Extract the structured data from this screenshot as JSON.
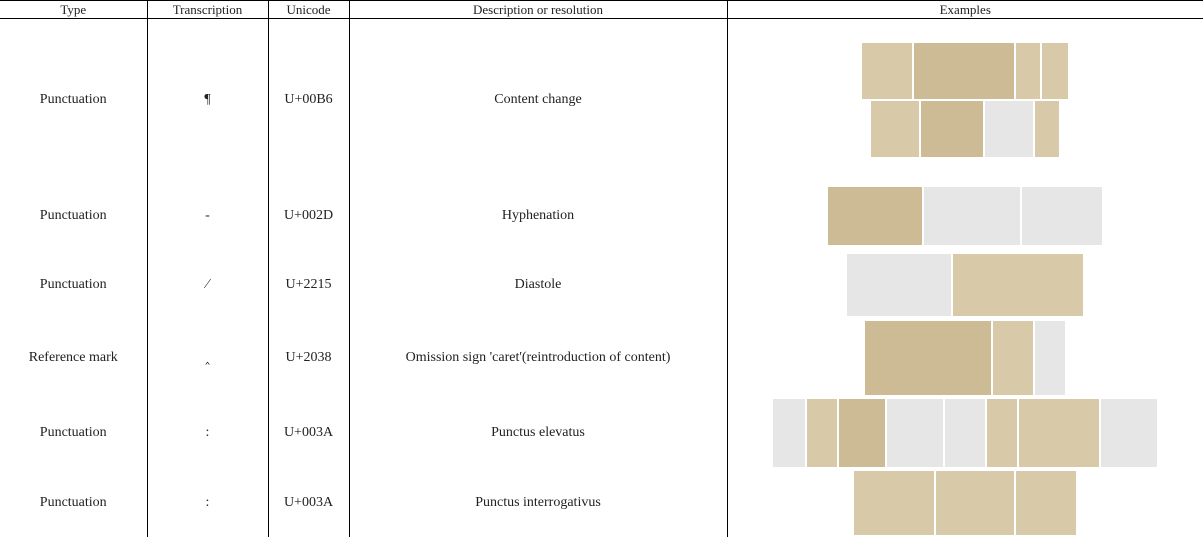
{
  "table": {
    "header": [
      "Type",
      "Transcription",
      "Unicode",
      "Description or resolution",
      "Examples"
    ],
    "rows": [
      [
        "Punctuation",
        "¶",
        "U+00B6",
        "Content change"
      ],
      [
        "Punctuation",
        "-",
        "U+002D",
        "Hyphenation"
      ],
      [
        "Punctuation",
        "∕",
        "U+2215",
        "Diastole"
      ],
      [
        "Reference mark",
        "‸",
        "U+2038",
        "Omission sign 'caret'(reintroduction of content)"
      ],
      [
        "Punctuation",
        ":",
        "U+003A",
        "Punctus elevatus"
      ],
      [
        "Punctuation",
        ":",
        "U+003A",
        "Punctus interrogativus"
      ]
    ]
  }
}
